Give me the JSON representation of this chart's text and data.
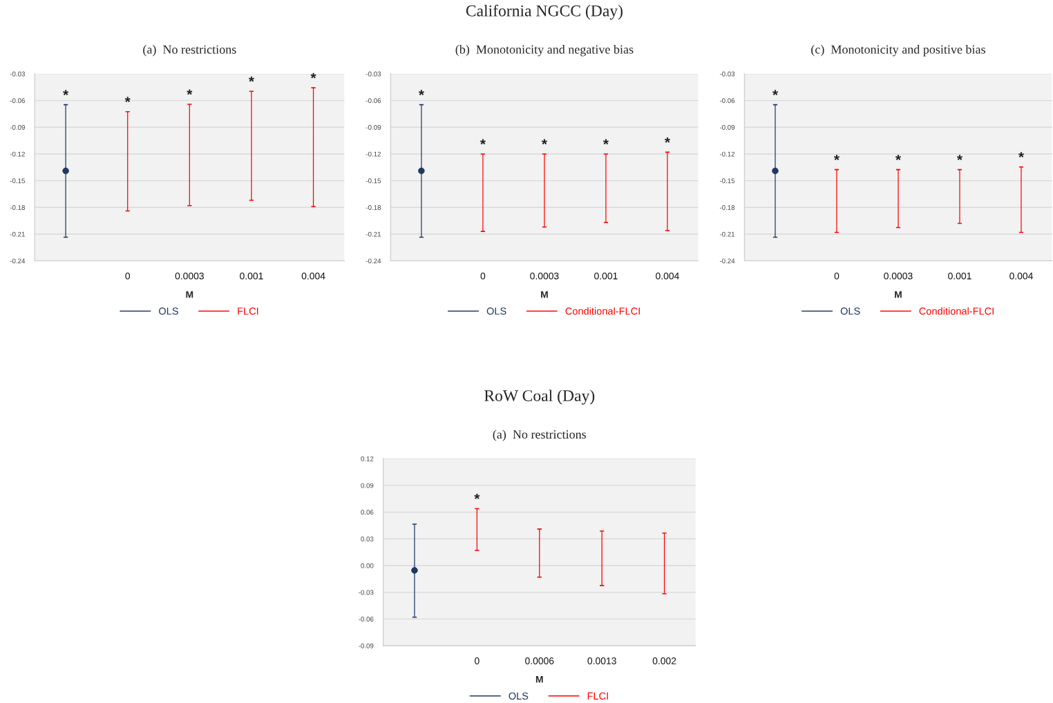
{
  "chart_data": [
    {
      "type": "bar",
      "title": null,
      "subtitle": "(a)  No restrictions",
      "xlabel": "M",
      "categories": [
        null,
        "0",
        "0.0003",
        "0.001",
        "0.004"
      ],
      "series": [
        {
          "name": "OLS",
          "color": "#1f3864",
          "base": [
            -0.2135,
            null,
            null,
            null,
            null
          ],
          "values": [
            0.1488,
            null,
            null,
            null,
            null
          ],
          "value_labels": [
            "*",
            null,
            null,
            null,
            null
          ]
        },
        {
          "type": "scatter",
          "color": "#1f3864",
          "marker": "circle",
          "values": [
            -0.139,
            null,
            null,
            null,
            null
          ]
        },
        {
          "name": "FLCI",
          "color": "#ff0000",
          "base": [
            null,
            -0.184,
            -0.178,
            -0.172,
            -0.179
          ],
          "values": [
            null,
            0.1115,
            0.1138,
            0.1224,
            0.1333
          ],
          "value_labels": [
            null,
            "*",
            "*",
            "*",
            "*"
          ]
        }
      ],
      "ylim": [
        -0.24,
        -0.03
      ],
      "yticks": [
        -0.24,
        -0.21,
        -0.18,
        -0.15,
        -0.12,
        -0.09,
        -0.06,
        -0.03
      ],
      "grid": "y",
      "legend": "bottom"
    },
    {
      "type": "bar",
      "title": "California NGCC (Day)",
      "subtitle": "(b)  Monotonicity and negative bias",
      "xlabel": "M",
      "categories": [
        null,
        "0",
        "0.0003",
        "0.001",
        "0.004"
      ],
      "series": [
        {
          "name": "OLS",
          "color": "#1f3864",
          "base": [
            -0.2135,
            null,
            null,
            null,
            null
          ],
          "values": [
            0.1488,
            null,
            null,
            null,
            null
          ],
          "value_labels": [
            "*",
            null,
            null,
            null,
            null
          ]
        },
        {
          "type": "scatter",
          "color": "#1f3864",
          "marker": "circle",
          "values": [
            -0.139,
            null,
            null,
            null,
            null
          ]
        },
        {
          "name": "Conditional-FLCI",
          "color": "#ff0000",
          "base": [
            null,
            -0.207,
            -0.202,
            -0.197,
            -0.206
          ],
          "values": [
            null,
            0.087,
            0.082,
            0.077,
            0.088
          ],
          "value_labels": [
            null,
            "*",
            "*",
            "*",
            "*"
          ]
        }
      ],
      "ylim": [
        -0.24,
        -0.03
      ],
      "yticks": [
        -0.24,
        -0.21,
        -0.18,
        -0.15,
        -0.12,
        -0.09,
        -0.06,
        -0.03
      ],
      "grid": "y",
      "legend": "bottom"
    },
    {
      "type": "bar",
      "title": null,
      "subtitle": "(c)  Monotonicity and positive bias",
      "xlabel": "M",
      "categories": [
        null,
        "0",
        "0.0003",
        "0.001",
        "0.004"
      ],
      "series": [
        {
          "name": "OLS",
          "color": "#1f3864",
          "base": [
            -0.2135,
            null,
            null,
            null,
            null
          ],
          "values": [
            0.1488,
            null,
            null,
            null,
            null
          ],
          "value_labels": [
            "*",
            null,
            null,
            null,
            null
          ]
        },
        {
          "type": "scatter",
          "color": "#1f3864",
          "marker": "circle",
          "values": [
            -0.139,
            null,
            null,
            null,
            null
          ]
        },
        {
          "name": "Conditional-FLCI",
          "color": "#ff0000",
          "base": [
            null,
            -0.208,
            -0.2027,
            -0.198,
            -0.208
          ],
          "values": [
            null,
            0.0704,
            0.0651,
            0.0604,
            0.0735
          ],
          "value_labels": [
            null,
            "*",
            "*",
            "*",
            "*"
          ]
        }
      ],
      "ylim": [
        -0.24,
        -0.03
      ],
      "yticks": [
        -0.24,
        -0.21,
        -0.18,
        -0.15,
        -0.12,
        -0.09,
        -0.06,
        -0.03
      ],
      "grid": "y",
      "legend": "bottom"
    },
    {
      "type": "bar",
      "title": "RoW Coal (Day)",
      "subtitle": "(a)  No restrictions",
      "xlabel": "M",
      "categories": [
        null,
        "0",
        "0.0006",
        "0.0013",
        "0.002"
      ],
      "series": [
        {
          "name": "OLS",
          "color": "#1f3864",
          "base": [
            -0.058,
            null,
            null,
            null,
            null
          ],
          "values": [
            0.1045,
            null,
            null,
            null,
            null
          ]
        },
        {
          "type": "scatter",
          "color": "#1f3864",
          "marker": "circle",
          "values": [
            -0.0054,
            null,
            null,
            null,
            null
          ]
        },
        {
          "name": "FLCI",
          "color": "#ff0000",
          "base": [
            null,
            0.017,
            -0.013,
            -0.0224,
            -0.0317
          ],
          "values": [
            null,
            0.047,
            0.054,
            0.0612,
            0.0682
          ],
          "value_labels": [
            null,
            "*",
            null,
            null,
            null
          ]
        }
      ],
      "ylim": [
        -0.09,
        0.12
      ],
      "yticks": [
        -0.09,
        -0.06,
        -0.03,
        {
          "value": 0,
          "label": "0.00"
        },
        0.03,
        0.06,
        0.09,
        0.12
      ],
      "grid": "y",
      "legend": "bottom"
    }
  ]
}
